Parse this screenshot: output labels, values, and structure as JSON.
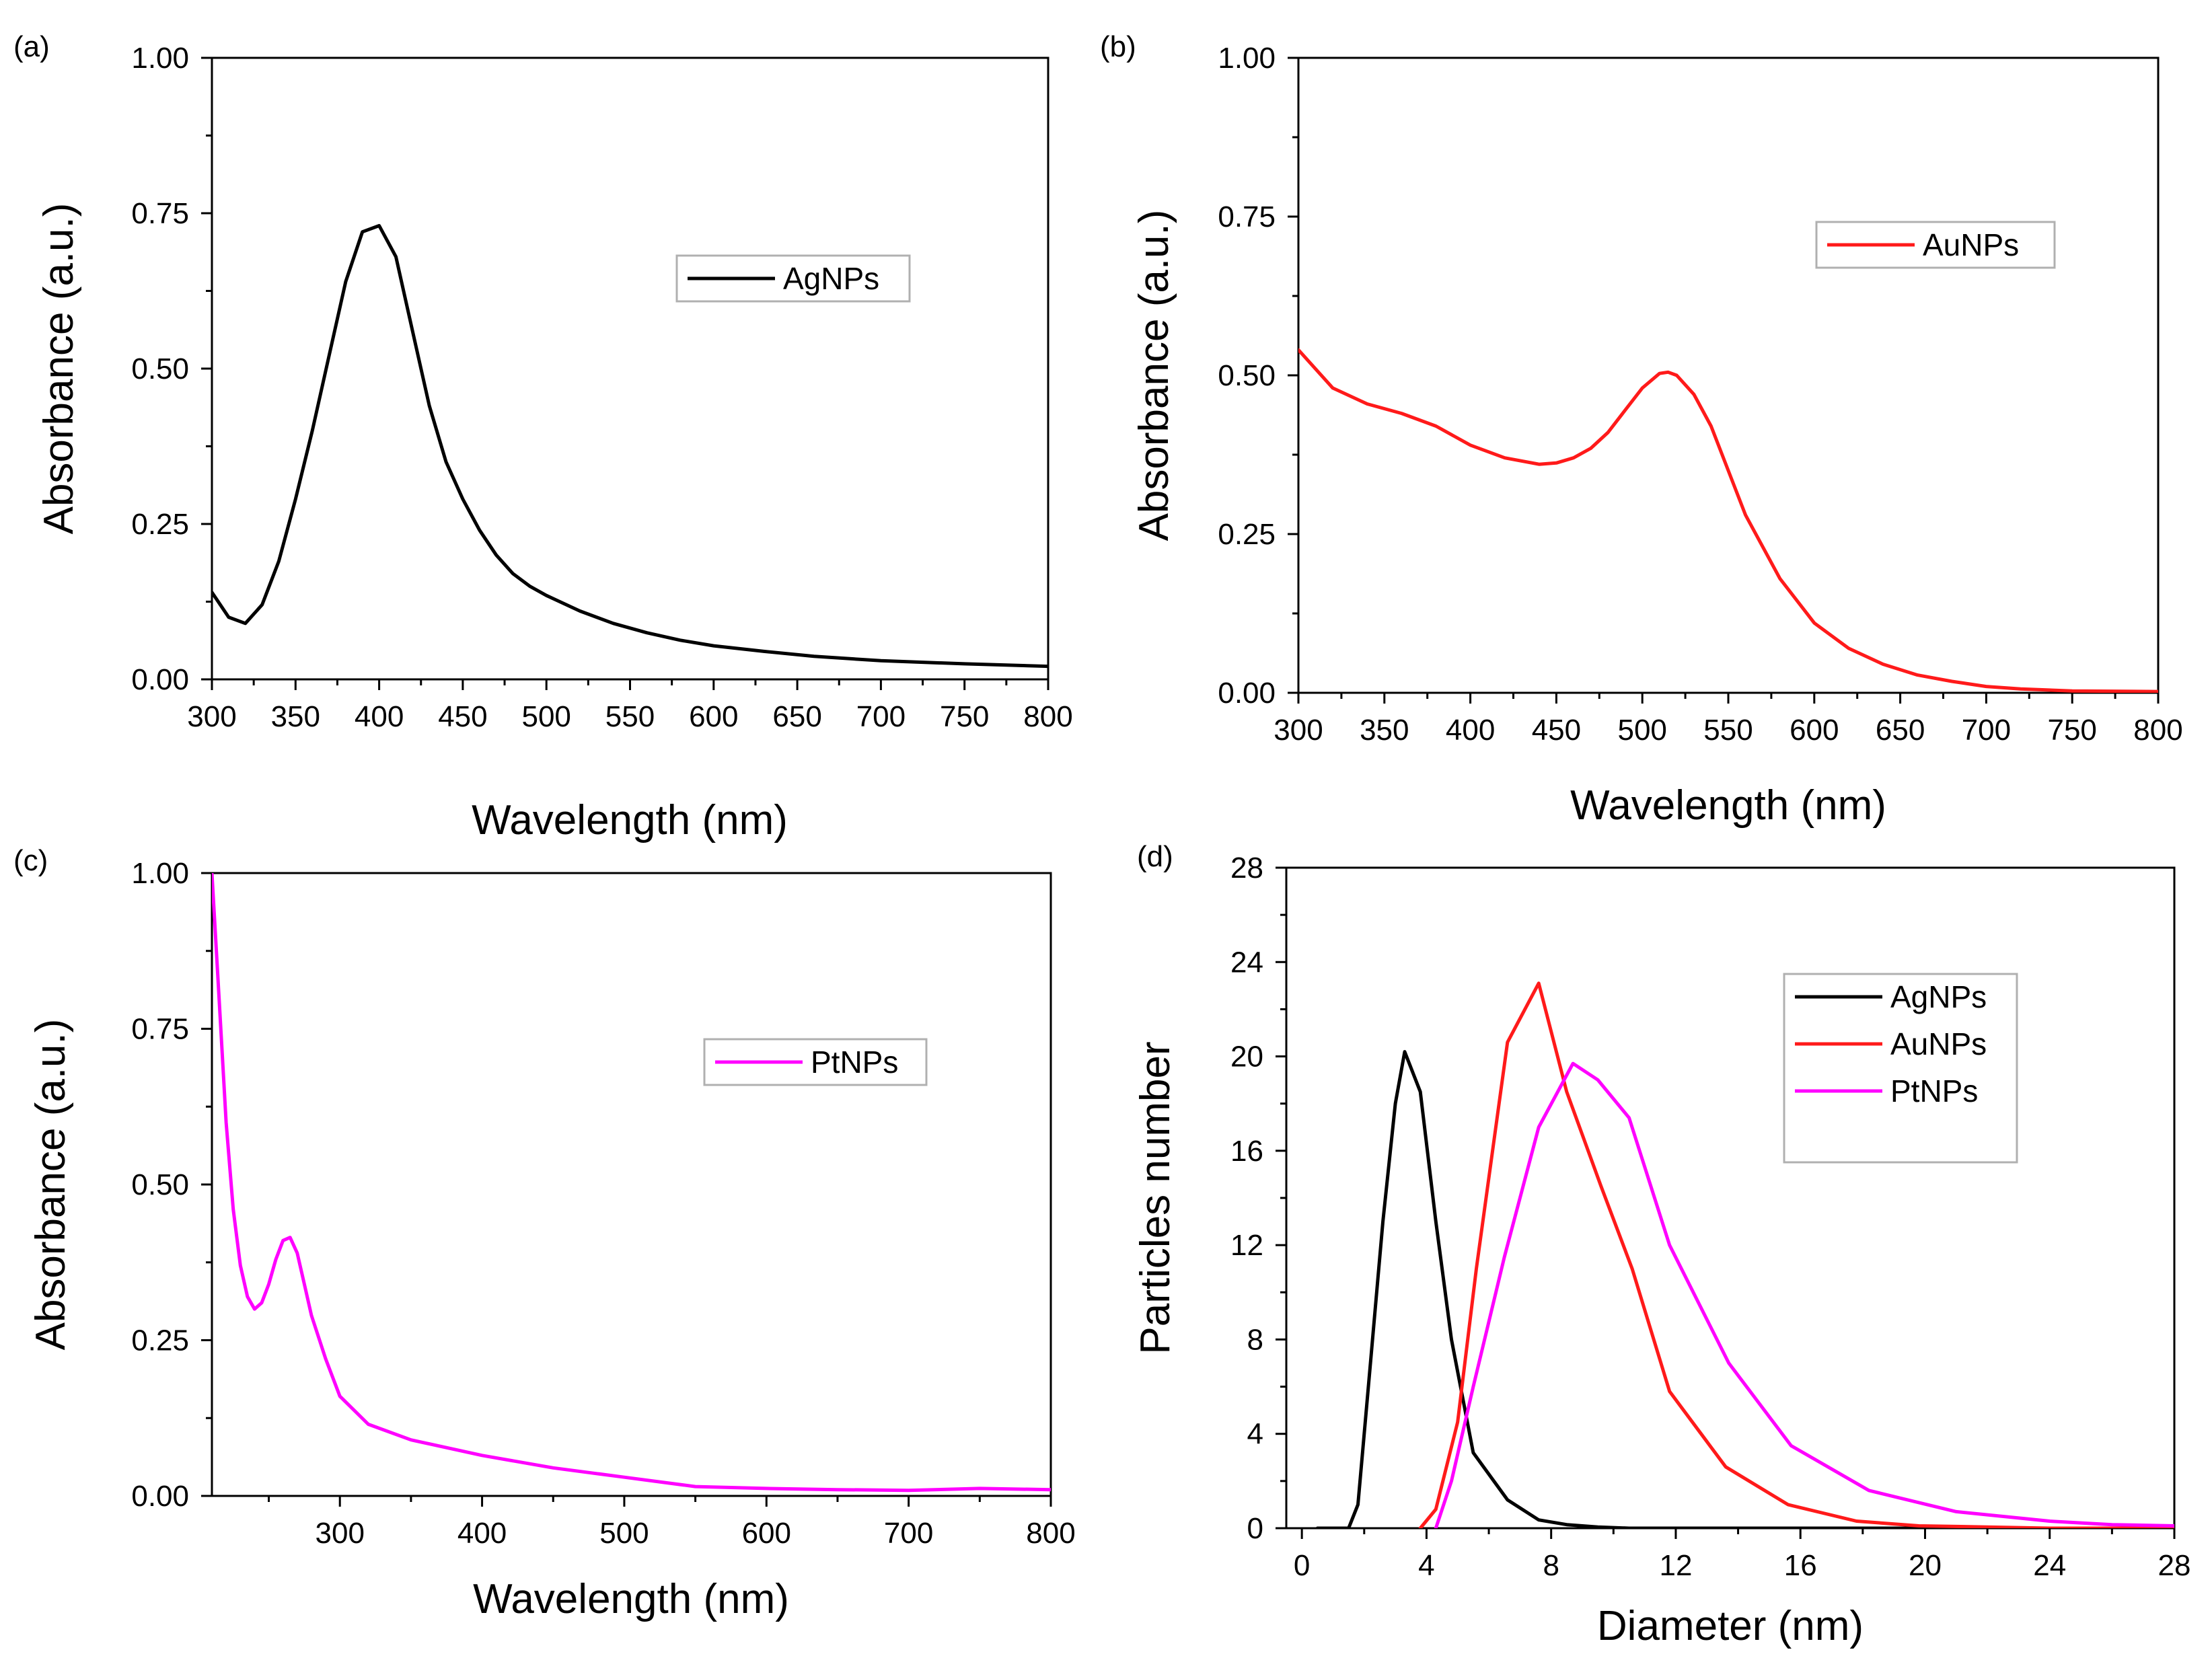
{
  "chart_data": [
    {
      "panel_label": "(a)",
      "type": "line",
      "xlabel": "Wavelength (nm)",
      "ylabel": "Absorbance (a.u.)",
      "xlim": [
        300,
        800
      ],
      "ylim": [
        0,
        1
      ],
      "xticks": [
        "300",
        "350",
        "400",
        "450",
        "500",
        "550",
        "600",
        "650",
        "700",
        "750",
        "800"
      ],
      "yticks": [
        "0.00",
        "0.25",
        "0.50",
        "0.75",
        "1.00"
      ],
      "legend_position": "top-right",
      "series": [
        {
          "name": "AgNPs",
          "color": "#000000",
          "x": [
            300,
            310,
            320,
            330,
            340,
            350,
            360,
            370,
            380,
            390,
            400,
            410,
            420,
            430,
            440,
            450,
            460,
            470,
            480,
            490,
            500,
            520,
            540,
            560,
            580,
            600,
            630,
            660,
            700,
            750,
            800
          ],
          "y": [
            0.14,
            0.1,
            0.09,
            0.12,
            0.19,
            0.29,
            0.4,
            0.52,
            0.64,
            0.72,
            0.73,
            0.68,
            0.56,
            0.44,
            0.35,
            0.29,
            0.24,
            0.2,
            0.17,
            0.15,
            0.135,
            0.11,
            0.09,
            0.075,
            0.063,
            0.054,
            0.045,
            0.037,
            0.03,
            0.025,
            0.021
          ]
        }
      ]
    },
    {
      "panel_label": "(b)",
      "type": "line",
      "xlabel": "Wavelength (nm)",
      "ylabel": "Absorbance (a.u.)",
      "xlim": [
        300,
        800
      ],
      "ylim": [
        0,
        1
      ],
      "xticks": [
        "300",
        "350",
        "400",
        "450",
        "500",
        "550",
        "600",
        "650",
        "700",
        "750",
        "800"
      ],
      "yticks": [
        "0.00",
        "0.25",
        "0.50",
        "0.75",
        "1.00"
      ],
      "legend_position": "top-right",
      "series": [
        {
          "name": "AuNPs",
          "color": "#ff1a1a",
          "x": [
            300,
            320,
            340,
            360,
            380,
            400,
            420,
            440,
            450,
            460,
            470,
            480,
            490,
            500,
            510,
            515,
            520,
            530,
            540,
            550,
            560,
            580,
            600,
            620,
            640,
            660,
            680,
            700,
            720,
            750,
            800
          ],
          "y": [
            0.54,
            0.48,
            0.455,
            0.44,
            0.42,
            0.39,
            0.37,
            0.36,
            0.362,
            0.37,
            0.385,
            0.41,
            0.445,
            0.48,
            0.503,
            0.505,
            0.5,
            0.47,
            0.42,
            0.35,
            0.28,
            0.18,
            0.11,
            0.07,
            0.045,
            0.028,
            0.018,
            0.01,
            0.006,
            0.003,
            0.002
          ]
        }
      ]
    },
    {
      "panel_label": "(c)",
      "type": "line",
      "xlabel": "Wavelength (nm)",
      "ylabel": "Absorbance (a.u.)",
      "xlim": [
        210,
        800
      ],
      "ylim": [
        0,
        1
      ],
      "xticks": [
        "300",
        "400",
        "500",
        "600",
        "700",
        "800"
      ],
      "xtick_values": [
        300,
        400,
        500,
        600,
        700,
        800
      ],
      "yticks": [
        "0.00",
        "0.25",
        "0.50",
        "0.75",
        "1.00"
      ],
      "legend_position": "top-right",
      "series": [
        {
          "name": "PtNPs",
          "color": "#ff00ff",
          "x": [
            210,
            215,
            220,
            225,
            230,
            235,
            240,
            245,
            250,
            255,
            260,
            265,
            270,
            275,
            280,
            290,
            300,
            320,
            350,
            400,
            450,
            500,
            550,
            600,
            650,
            700,
            750,
            800
          ],
          "y": [
            1.0,
            0.8,
            0.6,
            0.46,
            0.37,
            0.32,
            0.3,
            0.31,
            0.34,
            0.38,
            0.41,
            0.415,
            0.39,
            0.34,
            0.29,
            0.22,
            0.16,
            0.115,
            0.09,
            0.065,
            0.045,
            0.03,
            0.015,
            0.012,
            0.01,
            0.009,
            0.012,
            0.01
          ]
        }
      ]
    },
    {
      "panel_label": "(d)",
      "type": "line",
      "xlabel": "Diameter (nm)",
      "ylabel": "Particles number",
      "xlim": [
        -0.5,
        28
      ],
      "ylim": [
        0,
        28
      ],
      "xticks": [
        "0",
        "4",
        "8",
        "12",
        "16",
        "20",
        "24",
        "28"
      ],
      "xtick_values": [
        0,
        4,
        8,
        12,
        16,
        20,
        24,
        28
      ],
      "yticks": [
        "0",
        "4",
        "8",
        "12",
        "16",
        "20",
        "24",
        "28"
      ],
      "ytick_values": [
        0,
        4,
        8,
        12,
        16,
        20,
        24,
        28
      ],
      "legend_position": "top-right",
      "series": [
        {
          "name": "AgNPs",
          "color": "#000000",
          "x": [
            0.5,
            1.5,
            1.8,
            2.2,
            2.6,
            3.0,
            3.3,
            3.8,
            4.3,
            4.8,
            5.5,
            6.6,
            7.6,
            8.5,
            9.5,
            10.5,
            28
          ],
          "y": [
            0,
            0,
            1.0,
            7,
            13,
            18,
            20.2,
            18.5,
            13,
            8,
            3.2,
            1.2,
            0.35,
            0.15,
            0.05,
            0,
            0
          ]
        },
        {
          "name": "AuNPs",
          "color": "#ff1a1a",
          "x": [
            3.8,
            4.3,
            5.0,
            5.6,
            6.6,
            7.6,
            8.5,
            9.6,
            10.6,
            11.8,
            13.6,
            15.6,
            17.8,
            19.8,
            22,
            24,
            26,
            28
          ],
          "y": [
            0,
            0.8,
            4.5,
            11,
            20.6,
            23.1,
            18.5,
            14.5,
            11,
            5.8,
            2.6,
            1.0,
            0.3,
            0.1,
            0.05,
            0,
            0,
            0
          ]
        },
        {
          "name": "PtNPs",
          "color": "#ff00ff",
          "x": [
            4.3,
            4.8,
            5.5,
            6.5,
            7.6,
            8.7,
            9.5,
            10.5,
            11.8,
            13.7,
            15.7,
            18.2,
            21,
            24,
            26,
            28
          ],
          "y": [
            0,
            2,
            6,
            11.5,
            17,
            19.7,
            19,
            17.4,
            12,
            7,
            3.5,
            1.6,
            0.7,
            0.3,
            0.15,
            0.1
          ]
        }
      ]
    }
  ]
}
